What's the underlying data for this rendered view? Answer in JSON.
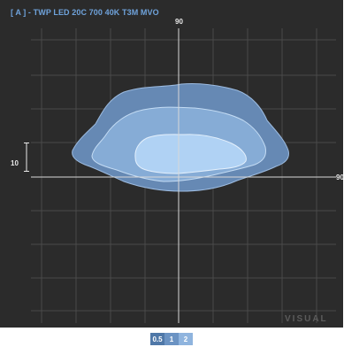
{
  "title": "[ A ] - TWP LED 20C 700 40K T3M MVO",
  "axis_labels": {
    "top": "90",
    "right": "90",
    "left": "10"
  },
  "watermark": "VISUAL",
  "colors": {
    "background": "#2b2b2b",
    "grid": "#4a4a4a",
    "axis": "#d8d8d8",
    "title": "#6fa3dc",
    "contour_outer": "#6689b4",
    "contour_middle": "#86acd6",
    "contour_inner": "#b0d2f4"
  },
  "legend": [
    {
      "label": "0.5",
      "color": "#4f78a8"
    },
    {
      "label": "1",
      "color": "#6b93c3"
    },
    {
      "label": "2",
      "color": "#8fb4de"
    }
  ]
}
